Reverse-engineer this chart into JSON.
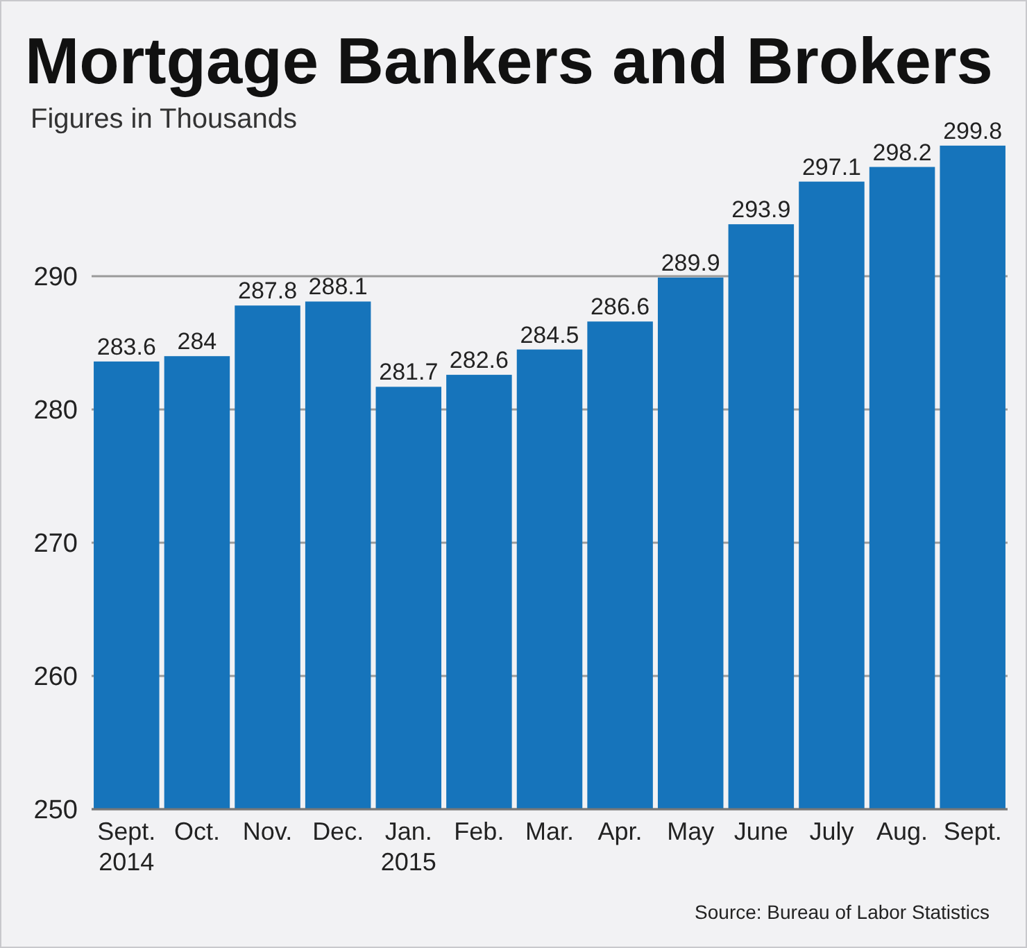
{
  "chart_data": {
    "type": "bar",
    "title": "Mortgage Bankers and Brokers",
    "subtitle": "Figures in Thousands",
    "categories": [
      "Sept.\n2014",
      "Oct.",
      "Nov.",
      "Dec.",
      "Jan.\n2015",
      "Feb.",
      "Mar.",
      "Apr.",
      "May",
      "June",
      "July",
      "Aug.",
      "Sept."
    ],
    "values": [
      283.6,
      284,
      287.8,
      288.1,
      281.7,
      282.6,
      284.5,
      286.6,
      289.9,
      293.9,
      297.1,
      298.2,
      299.8
    ],
    "color": "#1674bb",
    "ylim": [
      250,
      300
    ],
    "yticks": [
      250,
      260,
      270,
      280,
      290
    ],
    "grid": "y",
    "data_labels": true,
    "annotations": [
      "Source: Bureau of Labor Statistics"
    ]
  }
}
